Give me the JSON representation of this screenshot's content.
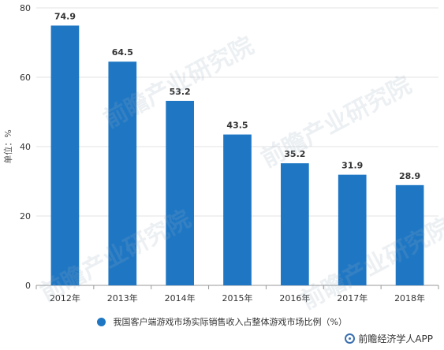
{
  "chart_data": {
    "type": "bar",
    "categories": [
      "2012年",
      "2013年",
      "2014年",
      "2015年",
      "2016年",
      "2017年",
      "2018年"
    ],
    "values": [
      74.9,
      64.5,
      53.2,
      43.5,
      35.2,
      31.9,
      28.9
    ],
    "data_labels": [
      "74.9",
      "64.5",
      "53.2",
      "43.5",
      "35.2",
      "31.9",
      "28.9"
    ],
    "ylabel": "单位：%",
    "ylim": [
      0,
      80
    ],
    "yticks": [
      0,
      20,
      40,
      60,
      80
    ],
    "grid": true,
    "legend": {
      "placement": "bottom",
      "entries": [
        "我国客户端游戏市场实际销售收入占整体游戏市场比例（%）"
      ]
    },
    "colors": {
      "bar": "#1f77c4",
      "grid": "#e3e3e3",
      "axis": "#999999"
    }
  },
  "watermark": "前瞻产业研究院",
  "footer": {
    "text": "前瞻经济学人APP",
    "icon": "qianzhan-logo-icon"
  }
}
